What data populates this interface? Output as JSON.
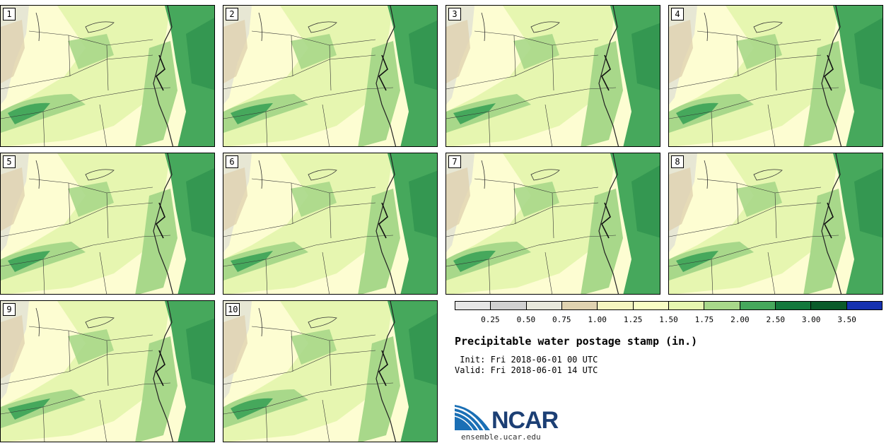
{
  "panels": [
    {
      "label": "1"
    },
    {
      "label": "2"
    },
    {
      "label": "3"
    },
    {
      "label": "4"
    },
    {
      "label": "5"
    },
    {
      "label": "6"
    },
    {
      "label": "7"
    },
    {
      "label": "8"
    },
    {
      "label": "9"
    },
    {
      "label": "10"
    }
  ],
  "colorbar": {
    "ticks": [
      "0.25",
      "0.50",
      "0.75",
      "1.00",
      "1.25",
      "1.50",
      "1.75",
      "2.00",
      "2.50",
      "3.00",
      "3.50"
    ],
    "colors": [
      "#e6e6e6",
      "#d0d0d0",
      "#e8e8dc",
      "#e0d2b0",
      "#f4f4c0",
      "#f8fcc4",
      "#e6f6b0",
      "#a8d88a",
      "#46a85c",
      "#13783c",
      "#0a5a2a",
      "#1631b0"
    ]
  },
  "title": "Precipitable water postage stamp (in.)",
  "init_line": " Init: Fri 2018-06-01 00 UTC",
  "valid_line": "Valid: Fri 2018-06-01 14 UTC",
  "logo": {
    "text": "NCAR",
    "url": "ensemble.ucar.edu"
  },
  "map_colors": {
    "dry": "#e0d2b0",
    "base": "#fdfdd2",
    "light": "#e6f6b0",
    "mid": "#a8d88a",
    "dark": "#46a85c",
    "darkest": "#13783c",
    "gray": "#d5d5d5"
  }
}
